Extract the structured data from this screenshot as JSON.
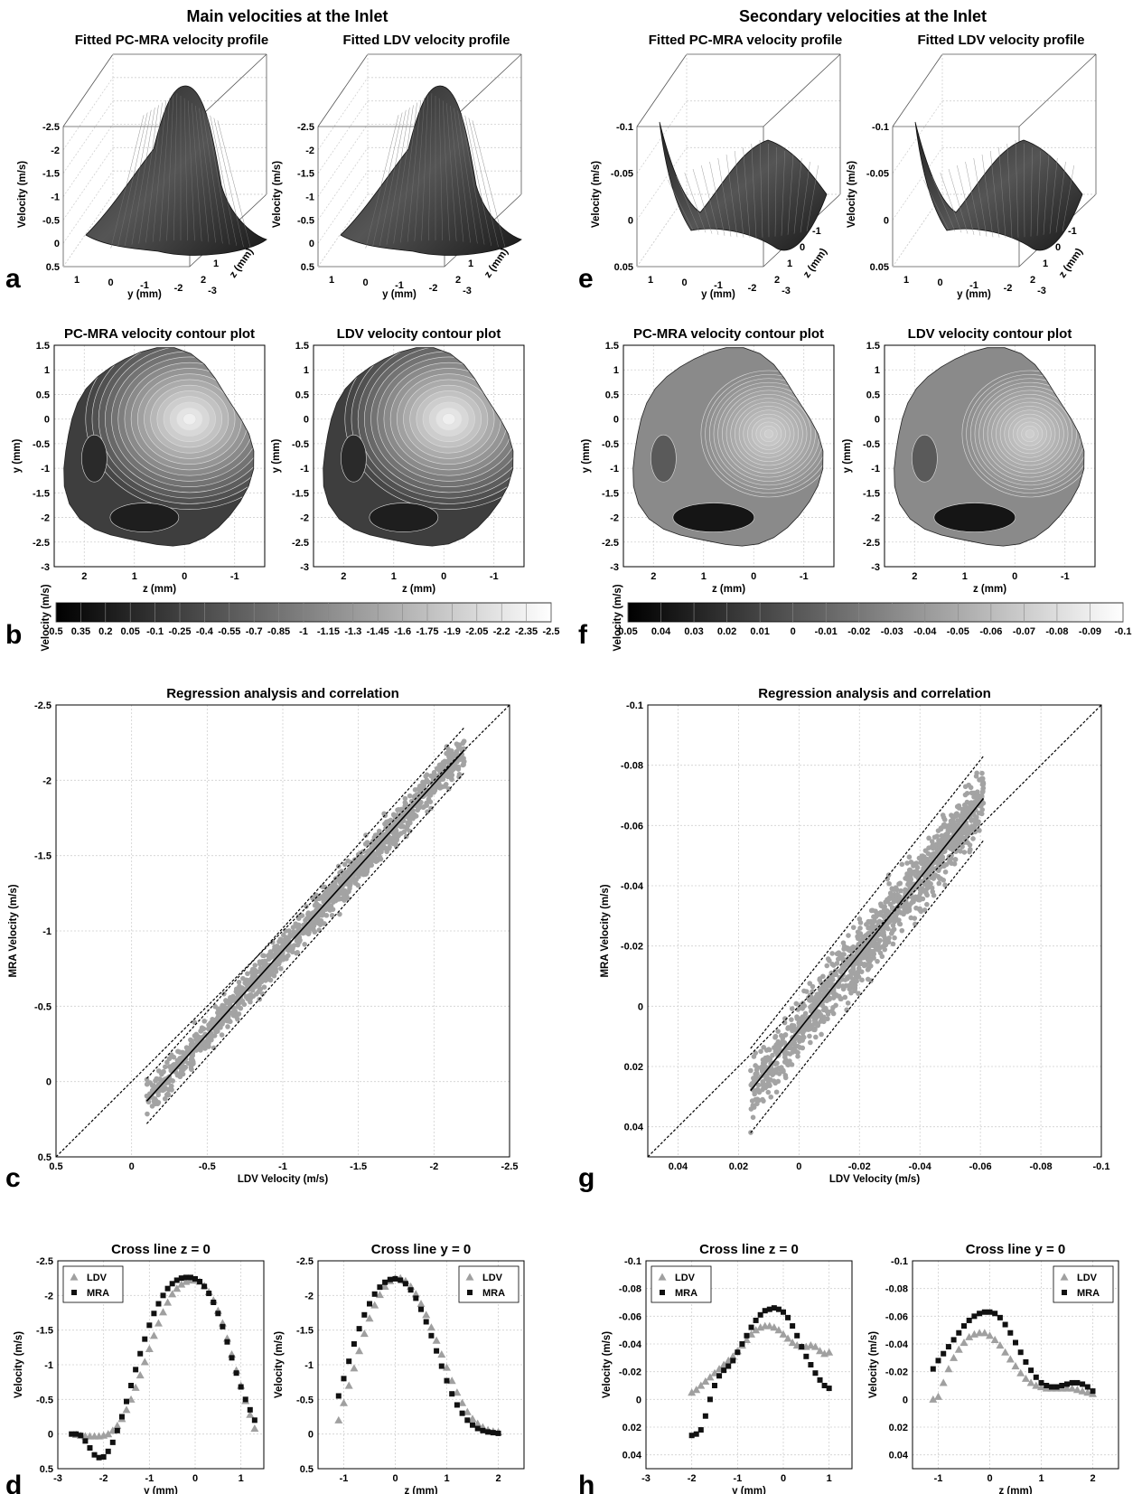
{
  "headers": {
    "left": "Main velocities at the Inlet",
    "right": "Secondary velocities at the Inlet"
  },
  "panel_letters": {
    "a": "a",
    "b": "b",
    "c": "c",
    "d": "d",
    "e": "e",
    "f": "f",
    "g": "g",
    "h": "h"
  },
  "chart_data": [
    {
      "id": "a1",
      "type": "surface",
      "title": "Fitted PC-MRA velocity profile",
      "zlabel": "Velocity (m/s)",
      "xlabel": "y (mm)",
      "ylabel": "z (mm)",
      "zticks": [
        "-2.5",
        "-2",
        "-1.5",
        "-1",
        "-0.5",
        "0",
        "0.5"
      ],
      "xticks": [
        "1",
        "0",
        "-1",
        "-2",
        "-3"
      ],
      "yticks": [
        "2",
        "1",
        "0",
        "-1"
      ]
    },
    {
      "id": "a2",
      "type": "surface",
      "title": "Fitted LDV velocity profile",
      "zlabel": "Velocity (m/s)",
      "xlabel": "y (mm)",
      "ylabel": "z (mm)",
      "zticks": [
        "-2.5",
        "-2",
        "-1.5",
        "-1",
        "-0.5",
        "0",
        "0.5"
      ],
      "xticks": [
        "1",
        "0",
        "-1",
        "-2",
        "-3"
      ],
      "yticks": [
        "2",
        "1",
        "0",
        "-1"
      ]
    },
    {
      "id": "e1",
      "type": "surface",
      "title": "Fitted PC-MRA velocity profile",
      "zlabel": "Velocity (m/s)",
      "xlabel": "y (mm)",
      "ylabel": "z (mm)",
      "zticks": [
        "-0.1",
        "-0.05",
        "0",
        "0.05"
      ],
      "xticks": [
        "1",
        "0",
        "-1",
        "-2",
        "-3"
      ],
      "yticks": [
        "2",
        "1",
        "0",
        "-1"
      ]
    },
    {
      "id": "e2",
      "type": "surface",
      "title": "Fitted LDV velocity profile",
      "zlabel": "Velocity (m/s)",
      "xlabel": "y (mm)",
      "ylabel": "z (mm)",
      "zticks": [
        "-0.1",
        "-0.05",
        "0",
        "0.05"
      ],
      "xticks": [
        "1",
        "0",
        "-1",
        "-2",
        "-3"
      ],
      "yticks": [
        "2",
        "1",
        "0",
        "-1"
      ]
    },
    {
      "id": "b1",
      "type": "heatmap",
      "title": "PC-MRA velocity contour plot",
      "xlabel": "z (mm)",
      "ylabel": "y (mm)",
      "xticks": [
        "2",
        "1",
        "0",
        "-1"
      ],
      "yticks": [
        "1.5",
        "1",
        "0.5",
        "0",
        "-0.5",
        "-1",
        "-1.5",
        "-2",
        "-2.5",
        "-3"
      ]
    },
    {
      "id": "b2",
      "type": "heatmap",
      "title": "LDV velocity contour plot",
      "xlabel": "z (mm)",
      "ylabel": "y (mm)",
      "xticks": [
        "2",
        "1",
        "0",
        "-1"
      ],
      "yticks": [
        "1.5",
        "1",
        "0.5",
        "0",
        "-0.5",
        "-1",
        "-1.5",
        "-2",
        "-2.5",
        "-3"
      ]
    },
    {
      "id": "f1",
      "type": "heatmap",
      "title": "PC-MRA velocity contour plot",
      "xlabel": "z (mm)",
      "ylabel": "y (mm)",
      "xticks": [
        "2",
        "1",
        "0",
        "-1"
      ],
      "yticks": [
        "1.5",
        "1",
        "0.5",
        "0",
        "-0.5",
        "-1",
        "-1.5",
        "-2",
        "-2.5",
        "-3"
      ]
    },
    {
      "id": "f2",
      "type": "heatmap",
      "title": "LDV velocity contour plot",
      "xlabel": "z (mm)",
      "ylabel": "y (mm)",
      "xticks": [
        "2",
        "1",
        "0",
        "-1"
      ],
      "yticks": [
        "1.5",
        "1",
        "0.5",
        "0",
        "-0.5",
        "-1",
        "-1.5",
        "-2",
        "-2.5",
        "-3"
      ]
    },
    {
      "id": "cb_left",
      "type": "colorbar",
      "label": "Velocity (m/s)",
      "ticks": [
        "0.5",
        "0.35",
        "0.2",
        "0.05",
        "-0.1",
        "-0.25",
        "-0.4",
        "-0.55",
        "-0.7",
        "-0.85",
        "-1",
        "-1.15",
        "-1.3",
        "-1.45",
        "-1.6",
        "-1.75",
        "-1.9",
        "-2.05",
        "-2.2",
        "-2.35",
        "-2.5"
      ]
    },
    {
      "id": "cb_right",
      "type": "colorbar",
      "label": "Velocity (m/s)",
      "ticks": [
        "0.05",
        "0.04",
        "0.03",
        "0.02",
        "0.01",
        "0",
        "-0.01",
        "-0.02",
        "-0.03",
        "-0.04",
        "-0.05",
        "-0.06",
        "-0.07",
        "-0.08",
        "-0.09",
        "-0.1"
      ]
    },
    {
      "id": "c",
      "type": "scatter",
      "title": "Regression analysis and correlation",
      "xlabel": "LDV Velocity (m/s)",
      "ylabel": "MRA Velocity (m/s)",
      "xlim": [
        0.5,
        -2.5
      ],
      "ylim": [
        0.5,
        -2.5
      ],
      "xticks": [
        "0.5",
        "0",
        "-0.5",
        "-1",
        "-1.5",
        "-2",
        "-2.5"
      ],
      "yticks": [
        "-2.5",
        "-2",
        "-1.5",
        "-1",
        "-0.5",
        "0",
        "0.5"
      ],
      "fit": {
        "x": [
          -0.1,
          -2.2
        ],
        "y": [
          0.13,
          -2.2
        ]
      },
      "band_offset": 0.15,
      "identity": true
    },
    {
      "id": "g",
      "type": "scatter",
      "title": "Regression analysis and correlation",
      "xlabel": "LDV Velocity (m/s)",
      "ylabel": "MRA Velocity (m/s)",
      "xlim": [
        0.05,
        -0.1
      ],
      "ylim": [
        0.05,
        -0.1
      ],
      "xticks": [
        "0.04",
        "0.02",
        "0",
        "-0.02",
        "-0.04",
        "-0.06",
        "-0.08",
        "-0.1"
      ],
      "yticks": [
        "-0.1",
        "-0.08",
        "-0.06",
        "-0.04",
        "-0.02",
        "0",
        "0.02",
        "0.04"
      ],
      "fit": {
        "x": [
          0.016,
          -0.061
        ],
        "y": [
          0.028,
          -0.069
        ]
      },
      "band_offset": 0.014,
      "identity": true
    },
    {
      "id": "d1",
      "type": "scatter",
      "title": "Cross line z = 0",
      "xlabel": "y (mm)",
      "ylabel": "Velocity (m/s)",
      "xlim": [
        -3,
        1.5
      ],
      "ylim": [
        0.5,
        -2.5
      ],
      "xticks": [
        "-3",
        "-2",
        "-1",
        "0",
        "1"
      ],
      "yticks": [
        "-2.5",
        "-2",
        "-1.5",
        "-1",
        "-0.5",
        "0",
        "0.5"
      ],
      "legend": [
        "LDV",
        "MRA"
      ],
      "legend_loc": "top-left",
      "series": [
        {
          "name": "LDV",
          "x": [
            -2.6,
            -2.5,
            -2.4,
            -2.3,
            -2.2,
            -2.1,
            -2.0,
            -1.9,
            -1.8,
            -1.7,
            -1.6,
            -1.5,
            -1.4,
            -1.3,
            -1.2,
            -1.1,
            -1.0,
            -0.9,
            -0.8,
            -0.7,
            -0.6,
            -0.5,
            -0.4,
            -0.3,
            -0.2,
            -0.1,
            0.0,
            0.1,
            0.2,
            0.3,
            0.4,
            0.5,
            0.6,
            0.7,
            0.8,
            0.9,
            1.0,
            1.1,
            1.2,
            1.3
          ],
          "y": [
            0.01,
            0.02,
            0.03,
            0.03,
            0.03,
            0.03,
            0.02,
            0.0,
            -0.05,
            -0.12,
            -0.22,
            -0.35,
            -0.5,
            -0.67,
            -0.85,
            -1.04,
            -1.23,
            -1.42,
            -1.6,
            -1.76,
            -1.9,
            -2.02,
            -2.1,
            -2.16,
            -2.2,
            -2.22,
            -2.22,
            -2.2,
            -2.14,
            -2.05,
            -1.93,
            -1.78,
            -1.6,
            -1.38,
            -1.15,
            -0.92,
            -0.7,
            -0.48,
            -0.28,
            -0.08
          ]
        },
        {
          "name": "MRA",
          "x": [
            -2.7,
            -2.6,
            -2.5,
            -2.4,
            -2.3,
            -2.2,
            -2.1,
            -2.0,
            -1.9,
            -1.8,
            -1.7,
            -1.6,
            -1.5,
            -1.4,
            -1.3,
            -1.2,
            -1.1,
            -1.0,
            -0.9,
            -0.8,
            -0.7,
            -0.6,
            -0.5,
            -0.4,
            -0.3,
            -0.2,
            -0.1,
            0.0,
            0.1,
            0.2,
            0.3,
            0.4,
            0.5,
            0.6,
            0.7,
            0.8,
            0.9,
            1.0,
            1.1,
            1.2,
            1.3
          ],
          "y": [
            0.0,
            0.0,
            0.02,
            0.1,
            0.2,
            0.3,
            0.34,
            0.33,
            0.25,
            0.12,
            -0.05,
            -0.25,
            -0.47,
            -0.7,
            -0.93,
            -1.16,
            -1.37,
            -1.57,
            -1.74,
            -1.88,
            -2.0,
            -2.1,
            -2.17,
            -2.22,
            -2.25,
            -2.26,
            -2.26,
            -2.24,
            -2.2,
            -2.13,
            -2.03,
            -1.9,
            -1.74,
            -1.55,
            -1.33,
            -1.1,
            -0.88,
            -0.68,
            -0.5,
            -0.35,
            -0.2
          ]
        }
      ]
    },
    {
      "id": "d2",
      "type": "scatter",
      "title": "Cross line y = 0",
      "xlabel": "z (mm)",
      "ylabel": "Velocity (m/s)",
      "xlim": [
        -1.5,
        2.5
      ],
      "ylim": [
        0.5,
        -2.5
      ],
      "xticks": [
        "-1",
        "0",
        "1",
        "2"
      ],
      "yticks": [
        "-2.5",
        "-2",
        "-1.5",
        "-1",
        "-0.5",
        "0",
        "0.5"
      ],
      "legend": [
        "LDV",
        "MRA"
      ],
      "legend_loc": "top-right",
      "series": [
        {
          "name": "LDV",
          "x": [
            -1.1,
            -1.0,
            -0.9,
            -0.8,
            -0.7,
            -0.6,
            -0.5,
            -0.4,
            -0.3,
            -0.2,
            -0.1,
            0.0,
            0.1,
            0.2,
            0.3,
            0.4,
            0.5,
            0.6,
            0.7,
            0.8,
            0.9,
            1.0,
            1.1,
            1.2,
            1.3,
            1.4,
            1.5,
            1.6,
            1.7,
            1.8,
            1.9,
            2.0
          ],
          "y": [
            -0.2,
            -0.45,
            -0.7,
            -0.95,
            -1.2,
            -1.45,
            -1.67,
            -1.86,
            -2.01,
            -2.13,
            -2.21,
            -2.25,
            -2.25,
            -2.21,
            -2.13,
            -2.02,
            -1.88,
            -1.72,
            -1.54,
            -1.35,
            -1.15,
            -0.96,
            -0.77,
            -0.6,
            -0.45,
            -0.32,
            -0.22,
            -0.15,
            -0.1,
            -0.06,
            -0.04,
            -0.03
          ]
        },
        {
          "name": "MRA",
          "x": [
            -1.1,
            -1.0,
            -0.9,
            -0.8,
            -0.7,
            -0.6,
            -0.5,
            -0.4,
            -0.3,
            -0.2,
            -0.1,
            0.0,
            0.1,
            0.2,
            0.3,
            0.4,
            0.5,
            0.6,
            0.7,
            0.8,
            0.9,
            1.0,
            1.1,
            1.2,
            1.3,
            1.4,
            1.5,
            1.6,
            1.7,
            1.8,
            1.9,
            2.0
          ],
          "y": [
            -0.55,
            -0.8,
            -1.05,
            -1.3,
            -1.52,
            -1.72,
            -1.88,
            -2.02,
            -2.12,
            -2.19,
            -2.23,
            -2.24,
            -2.22,
            -2.17,
            -2.08,
            -1.96,
            -1.8,
            -1.62,
            -1.42,
            -1.2,
            -0.98,
            -0.77,
            -0.58,
            -0.42,
            -0.3,
            -0.2,
            -0.13,
            -0.08,
            -0.05,
            -0.03,
            -0.02,
            -0.01
          ]
        }
      ]
    },
    {
      "id": "h1",
      "type": "scatter",
      "title": "Cross line z = 0",
      "xlabel": "y (mm)",
      "ylabel": "Velocity (m/s)",
      "xlim": [
        -3,
        1.5
      ],
      "ylim": [
        0.05,
        -0.1
      ],
      "xticks": [
        "-3",
        "-2",
        "-1",
        "0",
        "1"
      ],
      "yticks": [
        "-0.1",
        "-0.08",
        "-0.06",
        "-0.04",
        "-0.02",
        "0",
        "0.02",
        "0.04"
      ],
      "legend": [
        "LDV",
        "MRA"
      ],
      "legend_loc": "top-left",
      "series": [
        {
          "name": "LDV",
          "x": [
            -2.0,
            -1.9,
            -1.8,
            -1.7,
            -1.6,
            -1.5,
            -1.4,
            -1.3,
            -1.2,
            -1.1,
            -1.0,
            -0.9,
            -0.8,
            -0.7,
            -0.6,
            -0.5,
            -0.4,
            -0.3,
            -0.2,
            -0.1,
            0.0,
            0.1,
            0.2,
            0.3,
            0.4,
            0.5,
            0.6,
            0.7,
            0.8,
            0.9,
            1.0
          ],
          "y": [
            -0.005,
            -0.007,
            -0.01,
            -0.013,
            -0.016,
            -0.019,
            -0.022,
            -0.025,
            -0.028,
            -0.031,
            -0.035,
            -0.039,
            -0.043,
            -0.047,
            -0.05,
            -0.052,
            -0.053,
            -0.053,
            -0.052,
            -0.05,
            -0.047,
            -0.044,
            -0.041,
            -0.039,
            -0.038,
            -0.038,
            -0.039,
            -0.038,
            -0.035,
            -0.033,
            -0.034
          ]
        },
        {
          "name": "MRA",
          "x": [
            -2.0,
            -1.9,
            -1.8,
            -1.7,
            -1.6,
            -1.5,
            -1.4,
            -1.3,
            -1.2,
            -1.1,
            -1.0,
            -0.9,
            -0.8,
            -0.7,
            -0.6,
            -0.5,
            -0.4,
            -0.3,
            -0.2,
            -0.1,
            0.0,
            0.1,
            0.2,
            0.3,
            0.4,
            0.5,
            0.6,
            0.7,
            0.8,
            0.9,
            1.0
          ],
          "y": [
            0.026,
            0.025,
            0.022,
            0.012,
            0.0,
            -0.01,
            -0.017,
            -0.021,
            -0.024,
            -0.028,
            -0.034,
            -0.04,
            -0.046,
            -0.052,
            -0.057,
            -0.061,
            -0.064,
            -0.065,
            -0.066,
            -0.065,
            -0.063,
            -0.059,
            -0.053,
            -0.046,
            -0.038,
            -0.031,
            -0.025,
            -0.019,
            -0.014,
            -0.01,
            -0.008
          ]
        }
      ]
    },
    {
      "id": "h2",
      "type": "scatter",
      "title": "Cross line y = 0",
      "xlabel": "z (mm)",
      "ylabel": "Velocity (m/s)",
      "xlim": [
        -1.5,
        2.5
      ],
      "ylim": [
        0.05,
        -0.1
      ],
      "xticks": [
        "-1",
        "0",
        "1",
        "2"
      ],
      "yticks": [
        "-0.1",
        "-0.08",
        "-0.06",
        "-0.04",
        "-0.02",
        "0",
        "0.02",
        "0.04"
      ],
      "legend": [
        "LDV",
        "MRA"
      ],
      "legend_loc": "top-right",
      "series": [
        {
          "name": "LDV",
          "x": [
            -1.1,
            -1.0,
            -0.9,
            -0.8,
            -0.7,
            -0.6,
            -0.5,
            -0.4,
            -0.3,
            -0.2,
            -0.1,
            0.0,
            0.1,
            0.2,
            0.3,
            0.4,
            0.5,
            0.6,
            0.7,
            0.8,
            0.9,
            1.0,
            1.1,
            1.2,
            1.3,
            1.4,
            1.5,
            1.6,
            1.7,
            1.8,
            1.9,
            2.0
          ],
          "y": [
            0.0,
            -0.002,
            -0.012,
            -0.022,
            -0.03,
            -0.036,
            -0.041,
            -0.045,
            -0.047,
            -0.048,
            -0.048,
            -0.046,
            -0.043,
            -0.039,
            -0.034,
            -0.029,
            -0.024,
            -0.019,
            -0.015,
            -0.012,
            -0.01,
            -0.009,
            -0.008,
            -0.008,
            -0.008,
            -0.008,
            -0.008,
            -0.008,
            -0.007,
            -0.006,
            -0.005,
            -0.004
          ]
        },
        {
          "name": "MRA",
          "x": [
            -1.1,
            -1.0,
            -0.9,
            -0.8,
            -0.7,
            -0.6,
            -0.5,
            -0.4,
            -0.3,
            -0.2,
            -0.1,
            0.0,
            0.1,
            0.2,
            0.3,
            0.4,
            0.5,
            0.6,
            0.7,
            0.8,
            0.9,
            1.0,
            1.1,
            1.2,
            1.3,
            1.4,
            1.5,
            1.6,
            1.7,
            1.8,
            1.9,
            2.0
          ],
          "y": [
            -0.022,
            -0.028,
            -0.033,
            -0.038,
            -0.043,
            -0.048,
            -0.053,
            -0.057,
            -0.06,
            -0.062,
            -0.063,
            -0.063,
            -0.062,
            -0.059,
            -0.054,
            -0.048,
            -0.041,
            -0.034,
            -0.027,
            -0.021,
            -0.016,
            -0.012,
            -0.01,
            -0.009,
            -0.009,
            -0.01,
            -0.011,
            -0.012,
            -0.012,
            -0.011,
            -0.009,
            -0.006
          ]
        }
      ]
    }
  ]
}
